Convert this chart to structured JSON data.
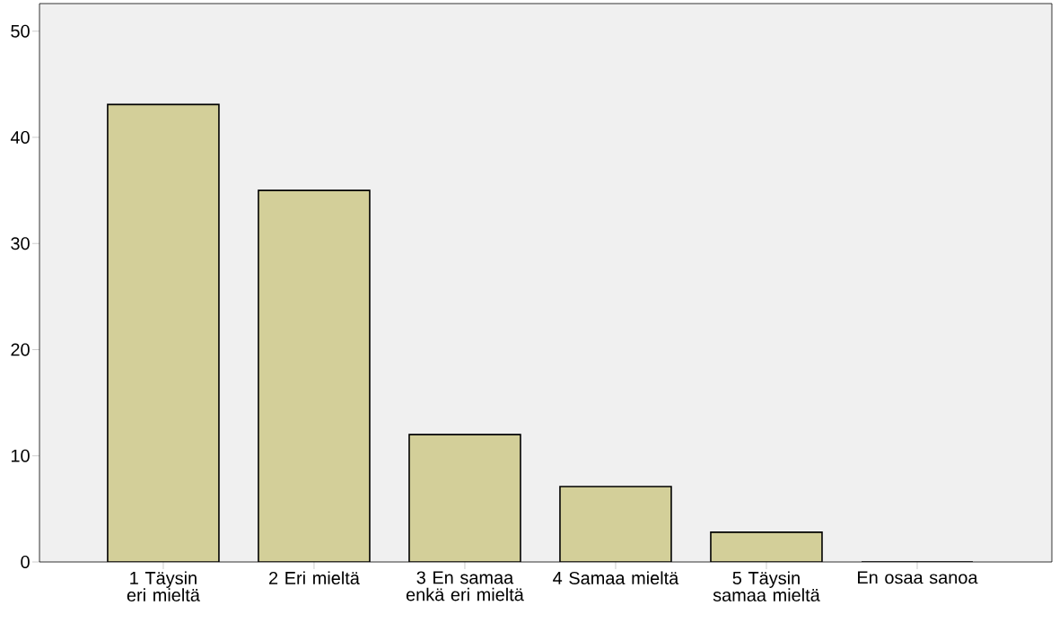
{
  "chart_data": {
    "type": "bar",
    "categories": [
      "1 Täysin eri mieltä",
      "2 Eri mieltä",
      "3 En samaa enkä eri mieltä",
      "4 Samaa mieltä",
      "5 Täysin samaa mieltä",
      "En osaa sanoa"
    ],
    "values": [
      43.1,
      35.0,
      12.0,
      7.1,
      2.8,
      0
    ],
    "color": "#d3cf99",
    "ylim": [
      0,
      52.6
    ],
    "yticks": [
      0,
      10,
      20,
      30,
      40,
      50
    ]
  }
}
